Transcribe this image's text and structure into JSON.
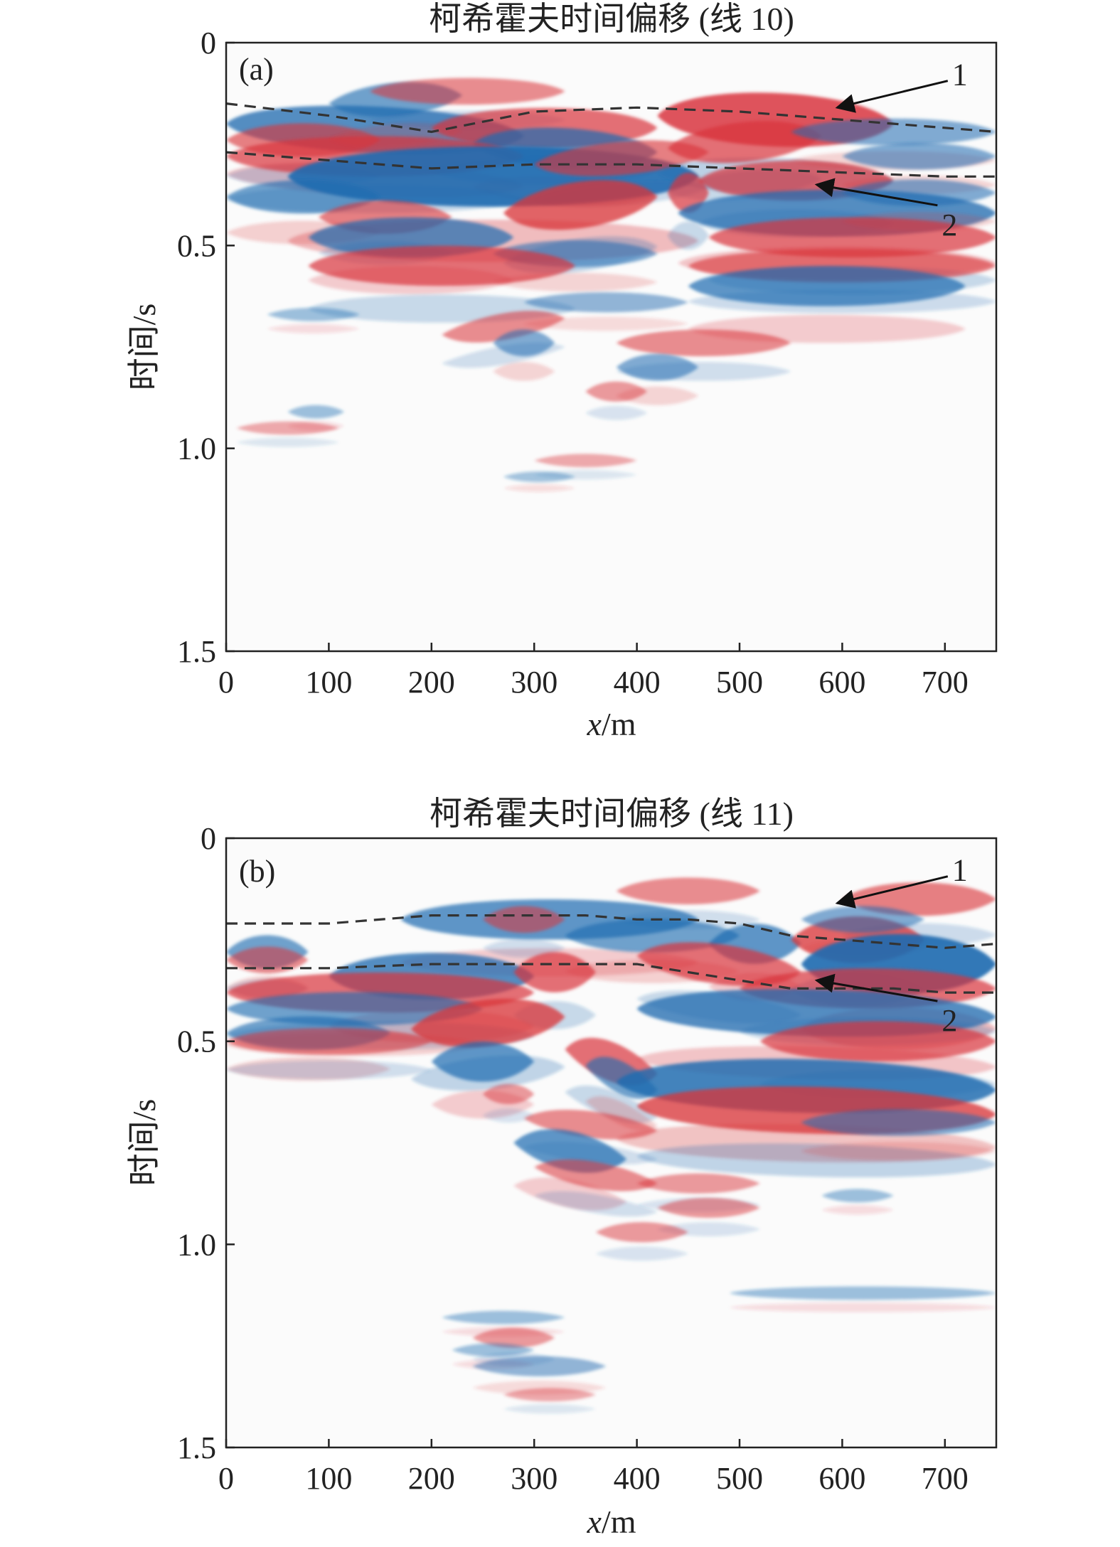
{
  "colors": {
    "positive": "#d9343b",
    "negative": "#1f6bb0",
    "background": "#fbfbfb",
    "dashed": "#333333"
  },
  "chart_data": [
    {
      "panel_label": "(a)",
      "type": "heatmap",
      "title": "柯希霍夫时间偏移 (线 10)",
      "xlabel_italic": "x",
      "xlabel_unit": "/m",
      "ylabel": "时间/s",
      "xlim": [
        0,
        750
      ],
      "ylim": [
        0,
        1.5
      ],
      "y_inverted": true,
      "xticks": [
        "0",
        "100",
        "200",
        "300",
        "400",
        "500",
        "600",
        "700"
      ],
      "yticks": [
        "0",
        "0.5",
        "1.0",
        "1.5"
      ],
      "horizons": [
        {
          "label": "1",
          "x": [
            0,
            100,
            200,
            300,
            400,
            500,
            600,
            700,
            750
          ],
          "y": [
            0.15,
            0.18,
            0.22,
            0.17,
            0.16,
            0.17,
            0.19,
            0.21,
            0.22
          ]
        },
        {
          "label": "2",
          "x": [
            0,
            100,
            200,
            300,
            400,
            500,
            600,
            700,
            750
          ],
          "y": [
            0.27,
            0.29,
            0.31,
            0.3,
            0.3,
            0.31,
            0.32,
            0.33,
            0.33
          ]
        }
      ],
      "annotations": [
        {
          "text": "1",
          "arrow_to": [
            595,
            0.16
          ],
          "label_at": [
            700,
            0.08
          ]
        },
        {
          "text": "2",
          "arrow_to": [
            575,
            0.35
          ],
          "label_at": [
            690,
            0.45
          ]
        }
      ],
      "events": [
        {
          "t0": 0.2,
          "pol": -1,
          "x0": 0,
          "x1": 290,
          "tilt": 0.03,
          "w": 3.5
        },
        {
          "t0": 0.24,
          "pol": 1,
          "x0": 0,
          "x1": 150,
          "tilt": 0.0,
          "w": 2.5
        },
        {
          "t0": 0.15,
          "pol": -1,
          "x0": 100,
          "x1": 230,
          "tilt": -0.02,
          "w": 2.5
        },
        {
          "t0": 0.12,
          "pol": 1,
          "x0": 140,
          "x1": 330,
          "tilt": 0.0,
          "w": 2
        },
        {
          "t0": 0.21,
          "pol": 1,
          "x0": 200,
          "x1": 420,
          "tilt": 0.0,
          "w": 3
        },
        {
          "t0": 0.25,
          "pol": -1,
          "x0": 240,
          "x1": 420,
          "tilt": 0.02,
          "w": 3
        },
        {
          "t0": 0.28,
          "pol": 1,
          "x0": 0,
          "x1": 290,
          "tilt": 0.0,
          "w": 3
        },
        {
          "t0": 0.33,
          "pol": -1,
          "x0": 60,
          "x1": 460,
          "tilt": 0.0,
          "w": 4.5
        },
        {
          "t0": 0.3,
          "pol": 1,
          "x0": 300,
          "x1": 470,
          "tilt": -0.03,
          "w": 2.5
        },
        {
          "t0": 0.18,
          "pol": 1,
          "x0": 420,
          "x1": 650,
          "tilt": 0.02,
          "w": 4
        },
        {
          "t0": 0.26,
          "pol": 1,
          "x0": 430,
          "x1": 580,
          "tilt": -0.03,
          "w": 3
        },
        {
          "t0": 0.22,
          "pol": -1,
          "x0": 550,
          "x1": 750,
          "tilt": 0.0,
          "w": 2
        },
        {
          "t0": 0.28,
          "pol": -1,
          "x0": 600,
          "x1": 750,
          "tilt": 0.0,
          "w": 2
        },
        {
          "t0": 0.34,
          "pol": 1,
          "x0": 460,
          "x1": 650,
          "tilt": 0.0,
          "w": 3
        },
        {
          "t0": 0.37,
          "pol": 1,
          "x0": 430,
          "x1": 470,
          "tilt": 0.0,
          "w": 3
        },
        {
          "t0": 0.38,
          "pol": -1,
          "x0": 0,
          "x1": 150,
          "tilt": 0.0,
          "w": 2.5
        },
        {
          "t0": 0.43,
          "pol": 1,
          "x0": 90,
          "x1": 220,
          "tilt": 0.0,
          "w": 2.5
        },
        {
          "t0": 0.42,
          "pol": 1,
          "x0": 270,
          "x1": 420,
          "tilt": -0.04,
          "w": 3.5
        },
        {
          "t0": 0.42,
          "pol": -1,
          "x0": 440,
          "x1": 750,
          "tilt": 0.0,
          "w": 3.5
        },
        {
          "t0": 0.37,
          "pol": -1,
          "x0": 600,
          "x1": 750,
          "tilt": 0.0,
          "w": 2
        },
        {
          "t0": 0.48,
          "pol": 1,
          "x0": 470,
          "x1": 750,
          "tilt": 0.0,
          "w": 3
        },
        {
          "t0": 0.48,
          "pol": -1,
          "x0": 80,
          "x1": 280,
          "tilt": 0.0,
          "w": 3
        },
        {
          "t0": 0.52,
          "pol": -1,
          "x0": 260,
          "x1": 420,
          "tilt": 0.0,
          "w": 2
        },
        {
          "t0": 0.55,
          "pol": 1,
          "x0": 80,
          "x1": 340,
          "tilt": 0.0,
          "w": 3
        },
        {
          "t0": 0.55,
          "pol": 1,
          "x0": 450,
          "x1": 750,
          "tilt": 0.0,
          "w": 2.5
        },
        {
          "t0": 0.6,
          "pol": -1,
          "x0": 450,
          "x1": 720,
          "tilt": 0.0,
          "w": 3
        },
        {
          "t0": 0.64,
          "pol": -1,
          "x0": 290,
          "x1": 450,
          "tilt": 0.0,
          "w": 1.5
        },
        {
          "t0": 0.72,
          "pol": 1,
          "x0": 210,
          "x1": 330,
          "tilt": -0.04,
          "w": 2
        },
        {
          "t0": 0.74,
          "pol": -1,
          "x0": 260,
          "x1": 320,
          "tilt": 0.0,
          "w": 2
        },
        {
          "t0": 0.74,
          "pol": 1,
          "x0": 380,
          "x1": 550,
          "tilt": 0.0,
          "w": 2
        },
        {
          "t0": 0.8,
          "pol": -1,
          "x0": 380,
          "x1": 460,
          "tilt": 0.0,
          "w": 2
        },
        {
          "t0": 0.86,
          "pol": 1,
          "x0": 350,
          "x1": 410,
          "tilt": 0.0,
          "w": 1.5
        },
        {
          "t0": 0.67,
          "pol": -1,
          "x0": 40,
          "x1": 130,
          "tilt": 0.0,
          "w": 1
        },
        {
          "t0": 0.95,
          "pol": 1,
          "x0": 10,
          "x1": 110,
          "tilt": 0.0,
          "w": 1
        },
        {
          "t0": 0.91,
          "pol": -1,
          "x0": 60,
          "x1": 115,
          "tilt": 0.0,
          "w": 1
        },
        {
          "t0": 1.03,
          "pol": 1,
          "x0": 300,
          "x1": 400,
          "tilt": 0.0,
          "w": 1
        },
        {
          "t0": 1.07,
          "pol": -1,
          "x0": 270,
          "x1": 340,
          "tilt": 0.0,
          "w": 0.8
        }
      ]
    },
    {
      "panel_label": "(b)",
      "type": "heatmap",
      "title": "柯希霍夫时间偏移 (线 11)",
      "xlabel_italic": "x",
      "xlabel_unit": "/m",
      "ylabel": "时间/s",
      "xlim": [
        0,
        750
      ],
      "ylim": [
        0,
        1.5
      ],
      "y_inverted": true,
      "xticks": [
        "0",
        "100",
        "200",
        "300",
        "400",
        "500",
        "600",
        "700"
      ],
      "yticks": [
        "0",
        "0.5",
        "1.0",
        "1.5"
      ],
      "horizons": [
        {
          "label": "1",
          "x": [
            0,
            100,
            200,
            300,
            350,
            400,
            450,
            500,
            550,
            600,
            650,
            700,
            750
          ],
          "y": [
            0.21,
            0.21,
            0.19,
            0.19,
            0.19,
            0.2,
            0.2,
            0.21,
            0.24,
            0.25,
            0.26,
            0.27,
            0.26
          ]
        },
        {
          "label": "2",
          "x": [
            0,
            100,
            200,
            300,
            400,
            450,
            500,
            550,
            600,
            650,
            700,
            750
          ],
          "y": [
            0.32,
            0.32,
            0.31,
            0.31,
            0.31,
            0.33,
            0.35,
            0.37,
            0.37,
            0.37,
            0.38,
            0.38
          ]
        }
      ],
      "annotations": [
        {
          "text": "1",
          "arrow_to": [
            595,
            0.16
          ],
          "label_at": [
            700,
            0.08
          ]
        },
        {
          "text": "2",
          "arrow_to": [
            575,
            0.35
          ],
          "label_at": [
            690,
            0.45
          ]
        }
      ],
      "events": [
        {
          "t0": 0.13,
          "pol": 1,
          "x0": 380,
          "x1": 520,
          "tilt": 0.0,
          "w": 2
        },
        {
          "t0": 0.15,
          "pol": 1,
          "x0": 600,
          "x1": 750,
          "tilt": 0.0,
          "w": 2.5
        },
        {
          "t0": 0.2,
          "pol": -1,
          "x0": 170,
          "x1": 460,
          "tilt": 0.0,
          "w": 3
        },
        {
          "t0": 0.2,
          "pol": 1,
          "x0": 250,
          "x1": 330,
          "tilt": 0.0,
          "w": 2
        },
        {
          "t0": 0.24,
          "pol": -1,
          "x0": 330,
          "x1": 500,
          "tilt": 0.0,
          "w": 2.5
        },
        {
          "t0": 0.28,
          "pol": -1,
          "x0": 0,
          "x1": 80,
          "tilt": 0.0,
          "w": 2.5
        },
        {
          "t0": 0.3,
          "pol": 1,
          "x0": 0,
          "x1": 80,
          "tilt": 0.0,
          "w": 2
        },
        {
          "t0": 0.26,
          "pol": -1,
          "x0": 470,
          "x1": 560,
          "tilt": 0.0,
          "w": 3
        },
        {
          "t0": 0.25,
          "pol": 1,
          "x0": 550,
          "x1": 680,
          "tilt": 0.0,
          "w": 3.5
        },
        {
          "t0": 0.2,
          "pol": -1,
          "x0": 560,
          "x1": 680,
          "tilt": 0.0,
          "w": 2
        },
        {
          "t0": 0.31,
          "pol": -1,
          "x0": 560,
          "x1": 750,
          "tilt": 0.0,
          "w": 4.5
        },
        {
          "t0": 0.29,
          "pol": 1,
          "x0": 400,
          "x1": 560,
          "tilt": 0.04,
          "w": 3
        },
        {
          "t0": 0.34,
          "pol": -1,
          "x0": 100,
          "x1": 300,
          "tilt": 0.0,
          "w": 3.5
        },
        {
          "t0": 0.33,
          "pol": 1,
          "x0": 280,
          "x1": 360,
          "tilt": 0.0,
          "w": 3
        },
        {
          "t0": 0.38,
          "pol": 1,
          "x0": 0,
          "x1": 300,
          "tilt": 0.0,
          "w": 3
        },
        {
          "t0": 0.37,
          "pol": 1,
          "x0": 500,
          "x1": 750,
          "tilt": 0.0,
          "w": 3
        },
        {
          "t0": 0.42,
          "pol": -1,
          "x0": 0,
          "x1": 250,
          "tilt": 0.0,
          "w": 2.5
        },
        {
          "t0": 0.42,
          "pol": -1,
          "x0": 400,
          "x1": 750,
          "tilt": 0.02,
          "w": 3.5
        },
        {
          "t0": 0.47,
          "pol": 1,
          "x0": 180,
          "x1": 330,
          "tilt": -0.03,
          "w": 3.5
        },
        {
          "t0": 0.48,
          "pol": -1,
          "x0": 0,
          "x1": 160,
          "tilt": 0.0,
          "w": 2.5
        },
        {
          "t0": 0.5,
          "pol": 1,
          "x0": 0,
          "x1": 200,
          "tilt": 0.0,
          "w": 2
        },
        {
          "t0": 0.52,
          "pol": 1,
          "x0": 330,
          "x1": 420,
          "tilt": 0.06,
          "w": 3
        },
        {
          "t0": 0.55,
          "pol": -1,
          "x0": 200,
          "x1": 300,
          "tilt": 0.0,
          "w": 3
        },
        {
          "t0": 0.5,
          "pol": 1,
          "x0": 520,
          "x1": 750,
          "tilt": 0.0,
          "w": 3
        },
        {
          "t0": 0.6,
          "pol": -1,
          "x0": 380,
          "x1": 750,
          "tilt": 0.02,
          "w": 4
        },
        {
          "t0": 0.56,
          "pol": -1,
          "x0": 350,
          "x1": 420,
          "tilt": 0.06,
          "w": 2.5
        },
        {
          "t0": 0.66,
          "pol": 1,
          "x0": 400,
          "x1": 750,
          "tilt": 0.02,
          "w": 3.5
        },
        {
          "t0": 0.7,
          "pol": -1,
          "x0": 560,
          "x1": 750,
          "tilt": 0.0,
          "w": 2
        },
        {
          "t0": 0.63,
          "pol": 1,
          "x0": 250,
          "x1": 300,
          "tilt": 0.0,
          "w": 1.5
        },
        {
          "t0": 0.69,
          "pol": 1,
          "x0": 290,
          "x1": 420,
          "tilt": 0.03,
          "w": 2
        },
        {
          "t0": 0.75,
          "pol": -1,
          "x0": 280,
          "x1": 390,
          "tilt": 0.04,
          "w": 3
        },
        {
          "t0": 0.81,
          "pol": 1,
          "x0": 300,
          "x1": 420,
          "tilt": 0.04,
          "w": 2
        },
        {
          "t0": 0.85,
          "pol": 1,
          "x0": 400,
          "x1": 520,
          "tilt": 0.0,
          "w": 1.5
        },
        {
          "t0": 0.88,
          "pol": -1,
          "x0": 580,
          "x1": 650,
          "tilt": 0.0,
          "w": 1
        },
        {
          "t0": 0.91,
          "pol": 1,
          "x0": 420,
          "x1": 520,
          "tilt": 0.0,
          "w": 1.5
        },
        {
          "t0": 0.97,
          "pol": 1,
          "x0": 360,
          "x1": 450,
          "tilt": 0.0,
          "w": 1.5
        },
        {
          "t0": 1.12,
          "pol": -1,
          "x0": 490,
          "x1": 750,
          "tilt": 0.0,
          "w": 1
        },
        {
          "t0": 1.18,
          "pol": -1,
          "x0": 210,
          "x1": 330,
          "tilt": 0.0,
          "w": 1
        },
        {
          "t0": 1.23,
          "pol": 1,
          "x0": 240,
          "x1": 320,
          "tilt": 0.0,
          "w": 1.5
        },
        {
          "t0": 1.26,
          "pol": -1,
          "x0": 220,
          "x1": 300,
          "tilt": 0.0,
          "w": 1
        },
        {
          "t0": 1.3,
          "pol": -1,
          "x0": 240,
          "x1": 370,
          "tilt": 0.0,
          "w": 1.5
        },
        {
          "t0": 1.37,
          "pol": 1,
          "x0": 270,
          "x1": 360,
          "tilt": 0.0,
          "w": 1
        }
      ]
    }
  ]
}
